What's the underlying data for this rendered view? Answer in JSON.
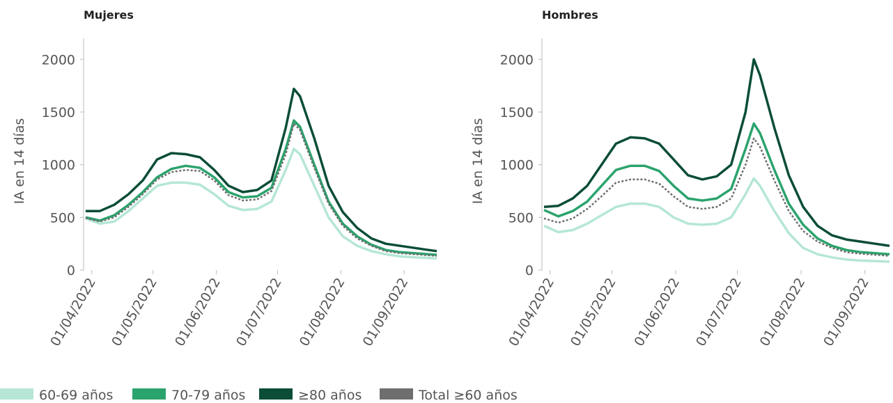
{
  "chart_data": [
    {
      "type": "line",
      "title": "Mujeres",
      "y_label": "IA en 14 días",
      "x": [
        "2022-03-29",
        "2022-04-05",
        "2022-04-12",
        "2022-04-19",
        "2022-04-26",
        "2022-05-03",
        "2022-05-10",
        "2022-05-17",
        "2022-05-24",
        "2022-05-31",
        "2022-06-07",
        "2022-06-14",
        "2022-06-21",
        "2022-06-28",
        "2022-07-05",
        "2022-07-09",
        "2022-07-12",
        "2022-07-19",
        "2022-07-26",
        "2022-08-02",
        "2022-08-09",
        "2022-08-16",
        "2022-08-23",
        "2022-08-30",
        "2022-09-06",
        "2022-09-13",
        "2022-09-17"
      ],
      "xlim": [
        "2022-03-28",
        "2022-09-18"
      ],
      "xticks": [
        {
          "value": "2022-04-01",
          "label": "01/04/2022"
        },
        {
          "value": "2022-05-01",
          "label": "01/05/2022"
        },
        {
          "value": "2022-06-01",
          "label": "01/06/2022"
        },
        {
          "value": "2022-07-01",
          "label": "01/07/2022"
        },
        {
          "value": "2022-08-01",
          "label": "01/08/2022"
        },
        {
          "value": "2022-09-01",
          "label": "01/09/2022"
        }
      ],
      "ylim": [
        0,
        2200
      ],
      "yticks": [
        0,
        500,
        1000,
        1500,
        2000
      ],
      "series": [
        {
          "name": "60-69 años",
          "color": "#b5e6d6",
          "values": [
            490,
            440,
            460,
            560,
            680,
            800,
            830,
            830,
            810,
            720,
            610,
            570,
            580,
            650,
            950,
            1150,
            1100,
            800,
            500,
            320,
            230,
            180,
            150,
            130,
            120,
            115,
            110
          ]
        },
        {
          "name": "70-79 años",
          "color": "#2ba36d",
          "values": [
            500,
            470,
            520,
            620,
            740,
            880,
            960,
            990,
            970,
            880,
            740,
            690,
            700,
            780,
            1150,
            1420,
            1360,
            1000,
            650,
            440,
            320,
            240,
            190,
            170,
            160,
            150,
            145
          ]
        },
        {
          "name": "≥80 años",
          "color": "#0b4d37",
          "values": [
            560,
            560,
            620,
            720,
            850,
            1050,
            1110,
            1100,
            1070,
            950,
            800,
            740,
            760,
            850,
            1350,
            1720,
            1650,
            1250,
            800,
            550,
            400,
            300,
            250,
            230,
            210,
            190,
            180
          ]
        },
        {
          "name": "Total ≥60 años",
          "color": "#6e6e6e",
          "dashed": true,
          "values": [
            495,
            460,
            500,
            600,
            720,
            860,
            930,
            950,
            940,
            850,
            710,
            660,
            670,
            750,
            1100,
            1390,
            1330,
            970,
            630,
            420,
            300,
            230,
            180,
            160,
            150,
            140,
            135
          ]
        }
      ]
    },
    {
      "type": "line",
      "title": "Hombres",
      "y_label": "IA en 14 días",
      "x": [
        "2022-03-29",
        "2022-04-05",
        "2022-04-12",
        "2022-04-19",
        "2022-04-26",
        "2022-05-03",
        "2022-05-10",
        "2022-05-17",
        "2022-05-24",
        "2022-05-31",
        "2022-06-07",
        "2022-06-14",
        "2022-06-21",
        "2022-06-28",
        "2022-07-05",
        "2022-07-09",
        "2022-07-12",
        "2022-07-19",
        "2022-07-26",
        "2022-08-02",
        "2022-08-09",
        "2022-08-16",
        "2022-08-23",
        "2022-08-30",
        "2022-09-06",
        "2022-09-13"
      ],
      "xlim": [
        "2022-03-28",
        "2022-09-14"
      ],
      "xticks": [
        {
          "value": "2022-04-01",
          "label": "01/04/2022"
        },
        {
          "value": "2022-05-01",
          "label": "01/05/2022"
        },
        {
          "value": "2022-06-01",
          "label": "01/06/2022"
        },
        {
          "value": "2022-07-01",
          "label": "01/07/2022"
        },
        {
          "value": "2022-08-01",
          "label": "01/08/2022"
        },
        {
          "value": "2022-09-01",
          "label": "01/09/2022"
        }
      ],
      "ylim": [
        0,
        2200
      ],
      "yticks": [
        0,
        500,
        1000,
        1500,
        2000
      ],
      "series": [
        {
          "name": "60-69 años",
          "color": "#b5e6d6",
          "values": [
            420,
            360,
            380,
            440,
            520,
            600,
            630,
            630,
            600,
            500,
            440,
            430,
            440,
            500,
            720,
            870,
            800,
            560,
            350,
            210,
            150,
            120,
            100,
            90,
            85,
            80
          ]
        },
        {
          "name": "70-79 años",
          "color": "#2ba36d",
          "values": [
            570,
            510,
            560,
            650,
            800,
            950,
            990,
            990,
            940,
            800,
            680,
            660,
            680,
            770,
            1150,
            1390,
            1300,
            950,
            630,
            430,
            300,
            230,
            190,
            170,
            160,
            150
          ]
        },
        {
          "name": "≥80 años",
          "color": "#0b4d37",
          "values": [
            600,
            610,
            680,
            800,
            1000,
            1200,
            1260,
            1250,
            1200,
            1050,
            900,
            860,
            890,
            1000,
            1500,
            2000,
            1850,
            1350,
            900,
            600,
            420,
            330,
            290,
            270,
            250,
            230
          ]
        },
        {
          "name": "Total ≥60 años",
          "color": "#6e6e6e",
          "dashed": true,
          "values": [
            490,
            450,
            490,
            580,
            700,
            830,
            860,
            860,
            820,
            700,
            600,
            580,
            600,
            680,
            1000,
            1250,
            1170,
            850,
            560,
            370,
            270,
            210,
            170,
            155,
            145,
            135
          ]
        }
      ]
    }
  ]
}
